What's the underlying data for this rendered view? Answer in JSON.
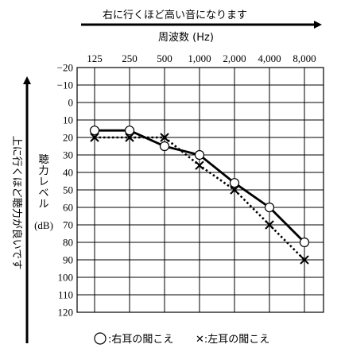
{
  "chart_data": {
    "type": "line",
    "top_direction_label": "右に行くほど高い音になります",
    "x_axis_title": "周波数 (Hz)",
    "y_axis_title_chars": [
      "聴",
      "力",
      "レ",
      "ベ",
      "ル"
    ],
    "y_unit": "(dB)",
    "left_direction_label": "上に行くほど聴力が良いです",
    "x_categories": [
      "125",
      "250",
      "500",
      "1,000",
      "2,000",
      "4,000",
      "8,000"
    ],
    "y_ticks": [
      "−20",
      "−10",
      "0",
      "10",
      "20",
      "30",
      "40",
      "50",
      "60",
      "70",
      "80",
      "90",
      "100",
      "110",
      "120"
    ],
    "ylim": [
      -20,
      120
    ],
    "y_inverted": true,
    "grid": true,
    "series": [
      {
        "name": "○:右耳の聞こえ",
        "marker": "circle",
        "line": "solid",
        "values": [
          16,
          16,
          25,
          30,
          46,
          60,
          80
        ]
      },
      {
        "name": "✕:左耳の聞こえ",
        "marker": "cross",
        "line": "dotted",
        "values": [
          20,
          20,
          20,
          36,
          50,
          70,
          90
        ]
      }
    ],
    "legend_position": "bottom"
  }
}
